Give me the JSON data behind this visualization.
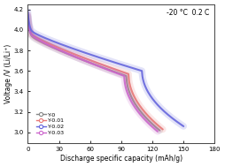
{
  "title_text": "-20 °C  0.2 C",
  "xlabel": "Discharge specific capacity (mAh/g)",
  "ylabel": "Voltage /V (Li/Li⁺)",
  "xlim": [
    0,
    180
  ],
  "ylim": [
    2.9,
    4.25
  ],
  "xticks": [
    0,
    30,
    60,
    90,
    120,
    150,
    180
  ],
  "yticks": [
    3.0,
    3.2,
    3.4,
    3.6,
    3.8,
    4.0,
    4.2
  ],
  "series": [
    {
      "label": "Y-0",
      "color": "#888888",
      "max_cap": 127,
      "v_start": 4.13,
      "v_fast_drop": 3.93,
      "v_plateau_end": 3.55,
      "v_end": 3.02,
      "fast_drop_x": 5,
      "knee_x": 95
    },
    {
      "label": "Y-0.01",
      "color": "#e87878",
      "max_cap": 130,
      "v_start": 4.15,
      "v_fast_drop": 3.95,
      "v_plateau_end": 3.57,
      "v_end": 3.03,
      "fast_drop_x": 5,
      "knee_x": 97
    },
    {
      "label": "Y-0.02",
      "color": "#6666dd",
      "max_cap": 150,
      "v_start": 4.18,
      "v_fast_drop": 3.98,
      "v_plateau_end": 3.6,
      "v_end": 3.06,
      "fast_drop_x": 5,
      "knee_x": 110
    },
    {
      "label": "Y-0.03",
      "color": "#cc66cc",
      "max_cap": 125,
      "v_start": 4.14,
      "v_fast_drop": 3.94,
      "v_plateau_end": 3.55,
      "v_end": 3.01,
      "fast_drop_x": 5,
      "knee_x": 93
    }
  ],
  "background_color": "#ffffff",
  "figsize": [
    2.54,
    1.89
  ],
  "dpi": 100
}
